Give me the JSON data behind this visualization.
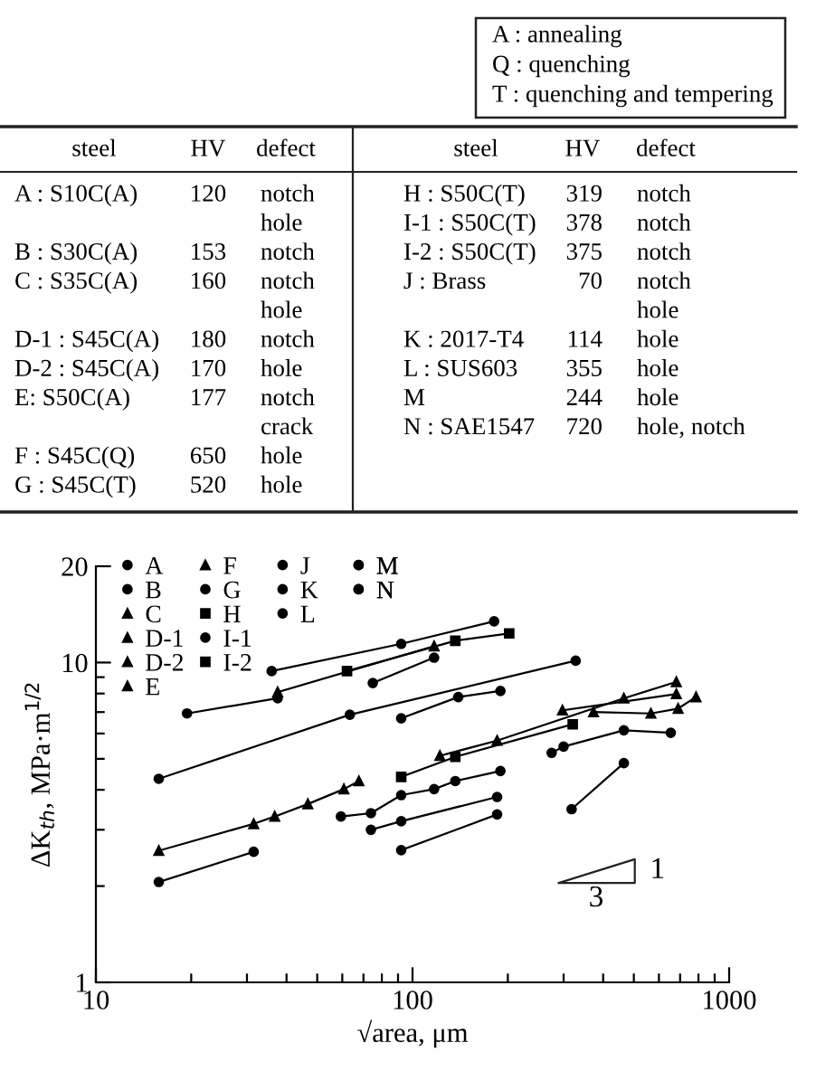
{
  "chart_data": [
    {
      "type": "other",
      "annotations": [
        "A : annealing",
        "Q : quenching",
        "T : quenching and tempering",
        "steel",
        "HV",
        "defect",
        "steel",
        "HV",
        "defect",
        "A : S10C(A)",
        "120",
        "notch",
        "hole",
        "B : S30C(A)",
        "153",
        "notch",
        "C : S35C(A)",
        "160",
        "notch",
        "hole",
        "D-1 : S45C(A)",
        "180",
        "notch",
        "D-2 : S45C(A)",
        "170",
        "hole",
        "E: S50C(A)",
        "177",
        "notch",
        "crack",
        "F : S45C(Q)",
        "650",
        "hole",
        "G : S45C(T)",
        "520",
        "hole",
        "H : S50C(T)",
        "319",
        "notch",
        "I-1 : S50C(T)",
        "378",
        "notch",
        "I-2 : S50C(T)",
        "375",
        "notch",
        "J : Brass",
        "70",
        "notch",
        "hole",
        "K : 2017-T4",
        "114",
        "hole",
        "L : SUS603",
        "355",
        "hole",
        "M",
        "244",
        "hole",
        "N : SAE1547",
        "720",
        "hole, notch"
      ]
    },
    {
      "type": "line",
      "xlabel": "√area, μm",
      "ylabel": "ΔK$_{th}$, MPa·m$^{1/2}$",
      "log": "xy",
      "xlim": [
        10,
        1000
      ],
      "ylim": [
        1,
        20
      ],
      "xticks": [
        10,
        {
          "value": 20,
          "label": null
        },
        {
          "value": 30,
          "label": null
        },
        {
          "value": 40,
          "label": null
        },
        {
          "value": 50,
          "label": null
        },
        {
          "value": 60,
          "label": null
        },
        {
          "value": 70,
          "label": null
        },
        {
          "value": 80,
          "label": null
        },
        {
          "value": 90,
          "label": null
        },
        100,
        {
          "value": 200,
          "label": null
        },
        {
          "value": 300,
          "label": null
        },
        {
          "value": 400,
          "label": null
        },
        {
          "value": 500,
          "label": null
        },
        {
          "value": 600,
          "label": null
        },
        {
          "value": 700,
          "label": null
        },
        {
          "value": 800,
          "label": null
        },
        {
          "value": 900,
          "label": null
        },
        1000
      ],
      "yticks": [
        1,
        {
          "value": 2,
          "label": null
        },
        {
          "value": 3,
          "label": null
        },
        {
          "value": 4,
          "label": null
        },
        {
          "value": 5,
          "label": null
        },
        {
          "value": 6,
          "label": null
        },
        {
          "value": 7,
          "label": null
        },
        {
          "value": 8,
          "label": null
        },
        {
          "value": 9,
          "label": null
        },
        10,
        20
      ],
      "grid": false,
      "legend": "top left",
      "line_style": "solid",
      "annotations": [
        "1",
        "3"
      ],
      "series": [
        {
          "name": "A",
          "color": "#000000",
          "marker": "circle",
          "x": [
            59.4,
            73.9,
            92.1,
            117,
            136.5,
            189.5
          ],
          "values": [
            3.3,
            3.38,
            3.85,
            4.02,
            4.26,
            4.58
          ]
        },
        {
          "name": "B",
          "color": "#000000",
          "marker": "circle",
          "x": [
            15.8,
            31.5
          ],
          "values": [
            2.06,
            2.56
          ]
        },
        {
          "name": "C",
          "color": "#000000",
          "marker": "triangle",
          "x": [
            15.8,
            31.5,
            36.7,
            46.7,
            60.7,
            67.7
          ],
          "values": [
            2.58,
            3.13,
            3.3,
            3.61,
            4.02,
            4.26
          ]
        },
        {
          "name": "D-1",
          "color": "#000000",
          "marker": "triangle",
          "x": [
            122,
            185,
            465,
            681
          ],
          "values": [
            5.11,
            5.7,
            7.73,
            8.7
          ]
        },
        {
          "name": "D-2",
          "color": "#000000",
          "marker": "triangle",
          "x": [
            297.5,
            681
          ],
          "values": [
            7.09,
            7.97
          ]
        },
        {
          "name": "E",
          "color": "#000000",
          "marker": "triangle",
          "x": [
            373,
            566,
            690,
            786
          ],
          "values": [
            7.0,
            6.93,
            7.18,
            7.8
          ]
        },
        {
          "name": "F",
          "color": "#000000",
          "marker": "triangle",
          "x": [
            37.5,
            117
          ],
          "values": [
            8.08,
            11.25
          ]
        },
        {
          "name": "G",
          "color": "#000000",
          "marker": "circle",
          "x": [
            74.9,
            117
          ],
          "values": [
            8.63,
            10.36
          ]
        },
        {
          "name": "H",
          "color": "#000000",
          "marker": "square",
          "x": [
            92.1,
            136.5,
            320.6
          ],
          "values": [
            4.39,
            5.07,
            6.41
          ]
        },
        {
          "name": "I-1",
          "color": "#000000",
          "marker": "circle",
          "x": [
            275,
            300,
            465,
            654
          ],
          "values": [
            5.22,
            5.46,
            6.14,
            6.03
          ]
        },
        {
          "name": "I-2",
          "color": "#000000",
          "marker": "square",
          "x": [
            62.1,
            136.5,
            202
          ],
          "values": [
            9.4,
            11.7,
            12.33
          ]
        },
        {
          "name": "J",
          "color": "#000000",
          "marker": "circle",
          "x": [
            92.1,
            185,
            null,
            318,
            465
          ],
          "values": [
            2.59,
            3.35,
            null,
            3.48,
            4.85
          ]
        },
        {
          "name": "K",
          "color": "#000000",
          "marker": "circle",
          "x": [
            73.9,
            92.1,
            185
          ],
          "values": [
            3.0,
            3.19,
            3.8
          ]
        },
        {
          "name": "L",
          "color": "#000000",
          "marker": "circle",
          "x": [
            92.1,
            139.4,
            189.5
          ],
          "values": [
            6.69,
            7.8,
            8.15
          ]
        },
        {
          "name": "M",
          "color": "#000000",
          "marker": "circle",
          "x": [
            15.8,
            63.4,
            327.5
          ],
          "values": [
            4.33,
            6.87,
            10.13
          ]
        },
        {
          "name": "N",
          "color": "#000000",
          "marker": "circle",
          "x": [
            19.4,
            37.5,
            null,
            35.9,
            92.1,
            181
          ],
          "values": [
            6.93,
            7.73,
            null,
            9.4,
            11.44,
            13.46
          ]
        }
      ]
    }
  ]
}
